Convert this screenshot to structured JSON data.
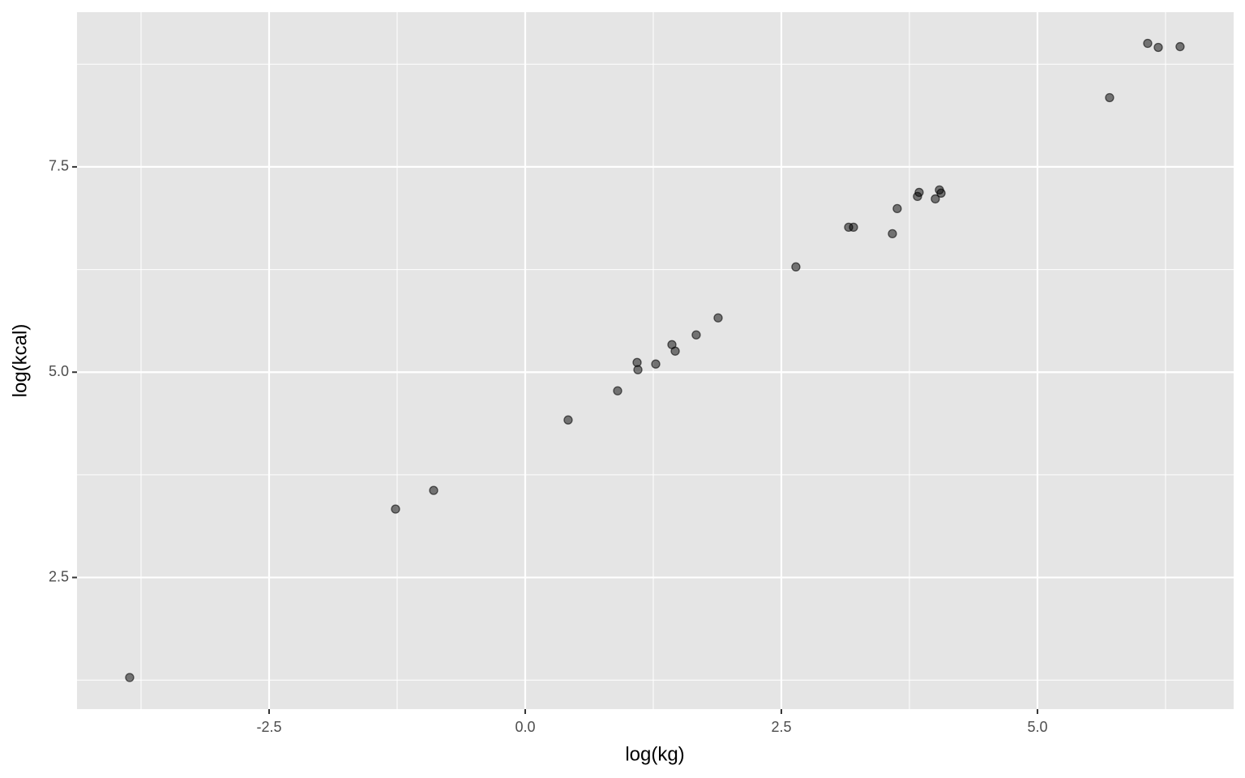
{
  "chart_data": {
    "type": "scatter",
    "x_label": "log(kg)",
    "y_label": "log(kcal)",
    "x": [
      -3.861,
      -1.266,
      -0.894,
      0.419,
      0.902,
      1.092,
      1.1,
      1.274,
      1.432,
      1.464,
      1.669,
      1.883,
      2.642,
      3.157,
      3.204,
      3.584,
      3.631,
      3.829,
      3.845,
      4.003,
      4.043,
      4.059,
      5.704,
      6.076,
      6.179,
      6.392
    ],
    "values": [
      1.282,
      3.333,
      3.56,
      4.418,
      4.773,
      5.118,
      5.03,
      5.099,
      5.335,
      5.256,
      5.454,
      5.661,
      6.282,
      6.765,
      6.765,
      6.686,
      6.992,
      7.14,
      7.189,
      7.11,
      7.219,
      7.18,
      8.343,
      9.004,
      8.955,
      8.964
    ],
    "color": "#000000",
    "xlim": [
      -4.375,
      6.915
    ],
    "ylim": [
      0.897,
      9.384
    ],
    "xticks": [
      -2.5,
      {
        "value": 0,
        "label": "0.0"
      },
      2.5,
      {
        "value": 5,
        "label": "5.0"
      }
    ],
    "yticks": [
      2.5,
      {
        "value": 5,
        "label": "5.0"
      },
      7.5
    ],
    "grid": true
  }
}
